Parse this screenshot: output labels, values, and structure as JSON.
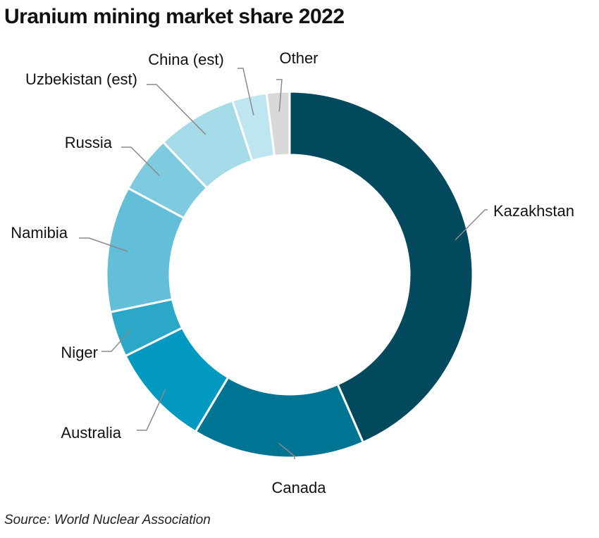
{
  "chart_data": {
    "type": "pie",
    "title": "Uranium mining market share 2022",
    "categories": [
      "Kazakhstan",
      "Canada",
      "Australia",
      "Niger",
      "Namibia",
      "Russia",
      "Uzbekistan (est)",
      "China (est)",
      "Other"
    ],
    "values": [
      43,
      15,
      9,
      4,
      11,
      5,
      7,
      3,
      2
    ],
    "colors": [
      "#02495d",
      "#007493",
      "#0199c0",
      "#2ba8c8",
      "#63bfd8",
      "#7ecbe0",
      "#a5dbe9",
      "#bde6f0",
      "#d8d8d8"
    ],
    "legend": "none",
    "source": "Source: World Nuclear Association"
  }
}
